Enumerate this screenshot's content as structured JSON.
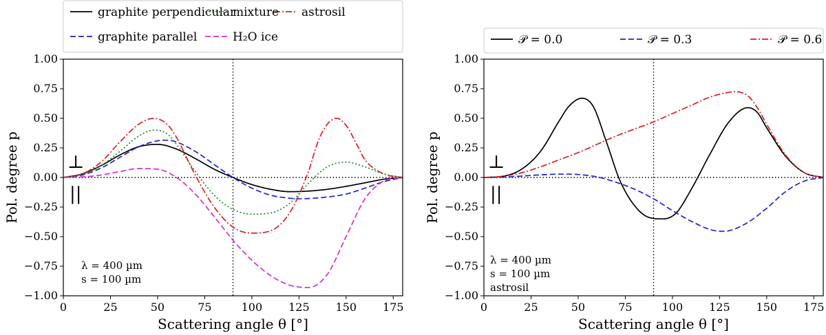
{
  "figure": {
    "panels": [
      {
        "id": "left",
        "annotation": [
          "λ = 400 µm",
          "s = 100 µm"
        ],
        "symbols": {
          "perpendicular": "⊥",
          "parallel": "||"
        },
        "legend": {
          "placement": "above-axes",
          "columns": 3
        }
      },
      {
        "id": "right",
        "annotation": [
          "λ = 400 µm",
          "s = 100 µm",
          "astrosil"
        ],
        "symbols": {
          "perpendicular": "⊥",
          "parallel": "||"
        },
        "legend": {
          "placement": "above-axes",
          "columns": 3
        }
      }
    ]
  },
  "chart_data": [
    {
      "type": "line",
      "xlabel": "Scattering angle θ [°]",
      "ylabel": "Pol. degree p",
      "xlim": [
        0,
        180
      ],
      "ylim": [
        -1.0,
        1.0
      ],
      "xticks": [
        0,
        25,
        50,
        75,
        100,
        125,
        150,
        175
      ],
      "yticks": [
        -1.0,
        -0.75,
        -0.5,
        -0.25,
        0.0,
        0.25,
        0.5,
        0.75,
        1.0
      ],
      "xtick_labels": [
        "0",
        "25",
        "50",
        "75",
        "100",
        "125",
        "150",
        "175"
      ],
      "ytick_labels": [
        "−1.00",
        "−0.75",
        "−0.50",
        "−0.25",
        "0.00",
        "0.25",
        "0.50",
        "0.75",
        "1.00"
      ],
      "reference_lines": {
        "vertical_x": 90,
        "horizontal_y": 0
      },
      "series": [
        {
          "name": "graphite perpendicular",
          "color": "#000000",
          "style": "solid",
          "x": [
            0,
            10,
            20,
            30,
            40,
            50,
            60,
            70,
            80,
            90,
            100,
            110,
            120,
            130,
            140,
            150,
            160,
            170,
            180
          ],
          "y": [
            0,
            0.03,
            0.1,
            0.19,
            0.26,
            0.28,
            0.24,
            0.16,
            0.07,
            0.0,
            -0.06,
            -0.1,
            -0.12,
            -0.115,
            -0.1,
            -0.075,
            -0.045,
            -0.015,
            0
          ]
        },
        {
          "name": "graphite parallel",
          "color": "#1f1fdc",
          "style": "dashed",
          "x": [
            0,
            10,
            20,
            30,
            40,
            50,
            55,
            60,
            70,
            80,
            90,
            100,
            110,
            120,
            125,
            130,
            140,
            150,
            160,
            170,
            180
          ],
          "y": [
            0,
            0.02,
            0.08,
            0.17,
            0.26,
            0.31,
            0.315,
            0.3,
            0.22,
            0.11,
            0.0,
            -0.09,
            -0.15,
            -0.175,
            -0.18,
            -0.178,
            -0.165,
            -0.14,
            -0.09,
            -0.035,
            0
          ]
        },
        {
          "name": "astrosil",
          "color": "#e31a1c",
          "style": "dashdot",
          "x": [
            0,
            10,
            20,
            30,
            40,
            48,
            55,
            60,
            65,
            70,
            80,
            90,
            100,
            110,
            120,
            130,
            135,
            140,
            145,
            150,
            155,
            160,
            170,
            180
          ],
          "y": [
            0,
            0.03,
            0.13,
            0.3,
            0.45,
            0.5,
            0.45,
            0.34,
            0.18,
            0.02,
            -0.25,
            -0.42,
            -0.47,
            -0.45,
            -0.3,
            0.05,
            0.3,
            0.45,
            0.5,
            0.44,
            0.3,
            0.15,
            0.03,
            0
          ]
        },
        {
          "name": "mixture",
          "color": "#1a8a1a",
          "style": "dotted",
          "x": [
            0,
            10,
            20,
            30,
            40,
            48,
            55,
            60,
            70,
            80,
            90,
            100,
            110,
            120,
            130,
            140,
            150,
            160,
            170,
            180
          ],
          "y": [
            0,
            0.025,
            0.1,
            0.22,
            0.35,
            0.4,
            0.37,
            0.28,
            0.05,
            -0.15,
            -0.27,
            -0.31,
            -0.3,
            -0.22,
            -0.05,
            0.09,
            0.13,
            0.09,
            0.03,
            0
          ]
        },
        {
          "name": "H₂O ice",
          "color": "#d62bd6",
          "style": "dashed",
          "x": [
            0,
            10,
            20,
            30,
            40,
            50,
            60,
            70,
            80,
            90,
            100,
            110,
            120,
            130,
            140,
            150,
            160,
            170,
            180
          ],
          "y": [
            0,
            0.005,
            0.02,
            0.05,
            0.075,
            0.07,
            0.0,
            -0.14,
            -0.33,
            -0.53,
            -0.7,
            -0.83,
            -0.91,
            -0.93,
            -0.82,
            -0.5,
            -0.18,
            -0.03,
            0
          ]
        }
      ]
    },
    {
      "type": "line",
      "xlabel": "Scattering angle θ [°]",
      "ylabel": "Pol. degree p",
      "xlim": [
        0,
        180
      ],
      "ylim": [
        -1.0,
        1.0
      ],
      "xticks": [
        0,
        25,
        50,
        75,
        100,
        125,
        150,
        175
      ],
      "yticks": [
        -1.0,
        -0.75,
        -0.5,
        -0.25,
        0.0,
        0.25,
        0.5,
        0.75,
        1.0
      ],
      "xtick_labels": [
        "0",
        "25",
        "50",
        "75",
        "100",
        "125",
        "150",
        "175"
      ],
      "ytick_labels": [
        "−1.00",
        "−0.75",
        "−0.50",
        "−0.25",
        "0.00",
        "0.25",
        "0.50",
        "0.75",
        "1.00"
      ],
      "reference_lines": {
        "vertical_x": 90,
        "horizontal_y": 0
      },
      "series": [
        {
          "name": "𝒫 = 0.0",
          "color": "#000000",
          "style": "solid",
          "x": [
            0,
            10,
            20,
            30,
            40,
            45,
            52,
            58,
            65,
            72,
            80,
            88,
            95,
            102,
            110,
            120,
            130,
            140,
            145,
            150,
            160,
            170,
            180
          ],
          "y": [
            0,
            0.01,
            0.07,
            0.22,
            0.48,
            0.6,
            0.67,
            0.6,
            0.3,
            -0.02,
            -0.24,
            -0.34,
            -0.35,
            -0.3,
            -0.1,
            0.2,
            0.47,
            0.59,
            0.55,
            0.42,
            0.18,
            0.04,
            0
          ]
        },
        {
          "name": "𝒫 = 0.3",
          "color": "#1f1fdc",
          "style": "dashed",
          "x": [
            0,
            10,
            20,
            30,
            40,
            45,
            50,
            60,
            70,
            80,
            90,
            100,
            110,
            120,
            126,
            130,
            140,
            150,
            160,
            170,
            180
          ],
          "y": [
            0,
            0.003,
            0.012,
            0.022,
            0.028,
            0.028,
            0.025,
            0.005,
            -0.04,
            -0.1,
            -0.18,
            -0.28,
            -0.37,
            -0.44,
            -0.455,
            -0.45,
            -0.38,
            -0.26,
            -0.12,
            -0.03,
            0
          ]
        },
        {
          "name": "𝒫 = 0.6",
          "color": "#e31a1c",
          "style": "dashdot",
          "x": [
            0,
            10,
            20,
            30,
            40,
            50,
            60,
            70,
            80,
            90,
            100,
            110,
            120,
            130,
            133,
            140,
            145,
            150,
            160,
            170,
            180
          ],
          "y": [
            0,
            0.01,
            0.04,
            0.09,
            0.15,
            0.21,
            0.28,
            0.35,
            0.41,
            0.47,
            0.54,
            0.61,
            0.68,
            0.72,
            0.725,
            0.69,
            0.59,
            0.45,
            0.19,
            0.04,
            0
          ]
        }
      ]
    }
  ]
}
